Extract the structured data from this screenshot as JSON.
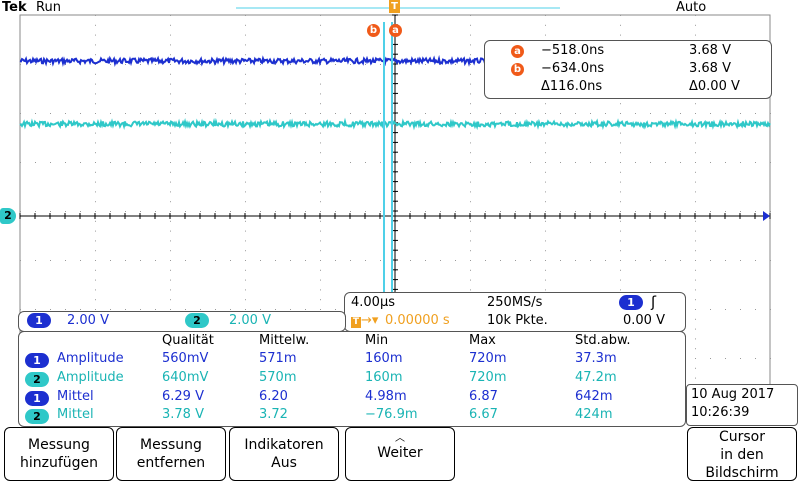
{
  "topbar": {
    "brand": "Tek",
    "run_status": "Run",
    "trigger_mode": "Auto"
  },
  "colors": {
    "ch1": "#1c2fd0",
    "ch2": "#2fc8c8",
    "cursor": "#4fd0e8",
    "marker": "#f05a19",
    "trigger": "#f0a020"
  },
  "markers": {
    "trigger": "T",
    "channel2": "2",
    "cursor_b": "b",
    "cursor_a": "a"
  },
  "cursors": {
    "a": {
      "label": "a",
      "time": "−518.0ns",
      "volt": "3.68 V"
    },
    "b": {
      "label": "b",
      "time": "−634.0ns",
      "volt": "3.68 V"
    },
    "delta": {
      "time": "Δ116.0ns",
      "volt": "Δ0.00 V"
    }
  },
  "timebase": {
    "time_per_div": "4.00µs",
    "sample_rate": "250MS/s",
    "trigger_channel": "1",
    "trigger_edge": "rising-edge-icon",
    "trigger_position": "0.00000 s",
    "record_length": "10k Pkte.",
    "trigger_level": "0.00 V"
  },
  "scales": {
    "ch1": {
      "num": "1",
      "value": "2.00 V"
    },
    "ch2": {
      "num": "2",
      "value": "2.00 V"
    }
  },
  "measurements": {
    "headers": [
      "Qualität",
      "Mittelw.",
      "Min",
      "Max",
      "Std.abw."
    ],
    "rows": [
      {
        "ch": "1",
        "name": "Amplitude",
        "values": [
          "560mV",
          "571m",
          "160m",
          "720m",
          "37.3m"
        ]
      },
      {
        "ch": "2",
        "name": "Amplitude",
        "values": [
          "640mV",
          "570m",
          "160m",
          "720m",
          "47.2m"
        ]
      },
      {
        "ch": "1",
        "name": "Mittel",
        "values": [
          "6.29 V",
          "6.20",
          "4.98m",
          "6.87",
          "642m"
        ]
      },
      {
        "ch": "2",
        "name": "Mittel",
        "values": [
          "3.78 V",
          "3.72",
          "−76.9m",
          "6.67",
          "424m"
        ]
      }
    ]
  },
  "datetime": {
    "date": "10 Aug 2017",
    "time": "10:26:39"
  },
  "softkeys": {
    "add": [
      "Messung",
      "hinzufügen"
    ],
    "remove": [
      "Messung",
      "entfernen"
    ],
    "indicators": [
      "Indikatoren",
      "Aus"
    ],
    "more": "Weiter",
    "cursor": [
      "Cursor",
      "in den",
      "Bildschirm"
    ]
  }
}
